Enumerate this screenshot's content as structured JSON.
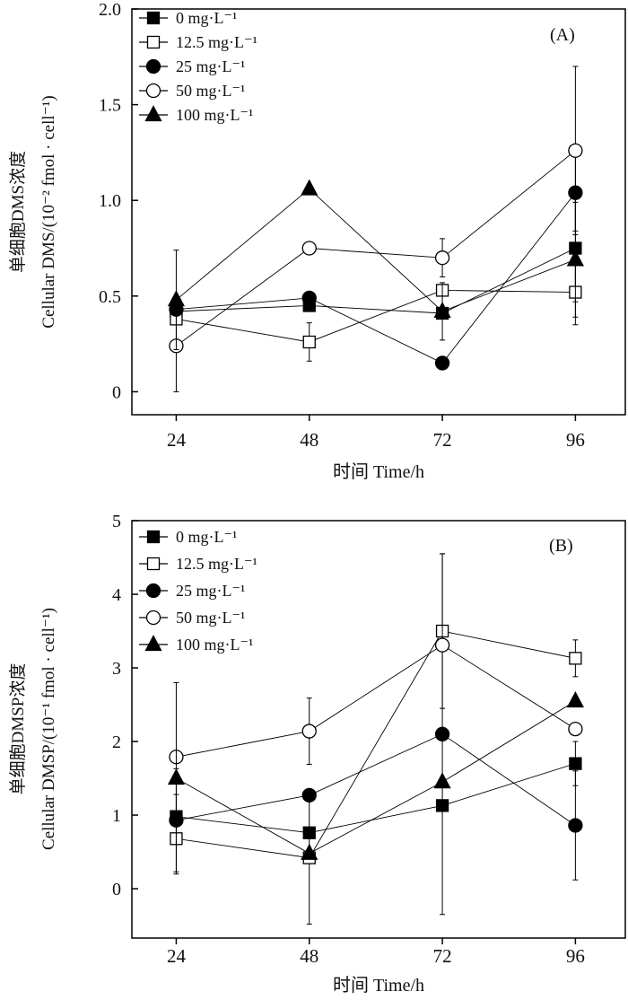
{
  "chart_data": [
    {
      "type": "line",
      "panel_label": "(A)",
      "xlabel": "时间 Time/h",
      "ylabel_cn": "单细胞DMS浓度",
      "ylabel_en": "Cellular DMS/(10⁻² fmol · cell⁻¹)",
      "x": [
        24,
        48,
        72,
        96
      ],
      "x_ticks": [
        "24",
        "48",
        "72",
        "96"
      ],
      "xlim": [
        16,
        105
      ],
      "ylim": [
        -0.12,
        2.0
      ],
      "y_ticks": [
        0,
        0.5,
        1.0,
        1.5,
        2.0
      ],
      "y_tick_labels": [
        "0",
        "0.5",
        "1.0",
        "1.5",
        "2.0"
      ],
      "legend_position": "top-left",
      "series": [
        {
          "name": "0 mg·L⁻¹",
          "marker": "square-filled",
          "values": [
            0.42,
            0.45,
            0.41,
            0.75
          ],
          "errors": [
            0,
            0,
            0,
            0.28
          ]
        },
        {
          "name": "12.5 mg·L⁻¹",
          "marker": "square-open",
          "values": [
            0.38,
            0.26,
            0.53,
            0.52
          ],
          "errors": [
            0,
            0.1,
            0,
            0.17
          ]
        },
        {
          "name": "25 mg·L⁻¹",
          "marker": "circle-filled",
          "values": [
            0.43,
            0.49,
            0.15,
            1.04
          ],
          "errors": [
            0,
            0,
            0,
            0.2
          ]
        },
        {
          "name": "50 mg·L⁻¹",
          "marker": "circle-open",
          "values": [
            0.24,
            0.75,
            0.7,
            1.26
          ],
          "errors": [
            0.24,
            0,
            0.1,
            0.44
          ]
        },
        {
          "name": "100 mg·L⁻¹",
          "marker": "triangle-filled",
          "values": [
            0.48,
            1.06,
            0.42,
            0.69
          ],
          "errors": [
            0.26,
            0,
            0.15,
            0.3
          ]
        }
      ]
    },
    {
      "type": "line",
      "panel_label": "(B)",
      "xlabel": "时间 Time/h",
      "ylabel_cn": "单细胞DMSP浓度",
      "ylabel_en": "Cellular DMSP/(10⁻¹ fmol · cell⁻¹)",
      "x": [
        24,
        48,
        72,
        96
      ],
      "x_ticks": [
        "24",
        "48",
        "72",
        "96"
      ],
      "xlim": [
        16,
        105
      ],
      "ylim": [
        -0.67,
        5
      ],
      "y_ticks": [
        0,
        1,
        2,
        3,
        4,
        5
      ],
      "y_tick_labels": [
        "0",
        "1",
        "2",
        "3",
        "4",
        "5"
      ],
      "legend_position": "top-left",
      "series": [
        {
          "name": "0 mg·L⁻¹",
          "marker": "square-filled",
          "values": [
            0.98,
            0.76,
            1.13,
            1.7
          ],
          "errors": [
            0.3,
            0,
            0,
            0.3
          ]
        },
        {
          "name": "12.5 mg·L⁻¹",
          "marker": "square-open",
          "values": [
            0.68,
            0.42,
            3.5,
            3.13
          ],
          "errors": [
            0,
            0.9,
            1.05,
            0.25
          ]
        },
        {
          "name": "25 mg·L⁻¹",
          "marker": "circle-filled",
          "values": [
            0.93,
            1.27,
            2.1,
            0.86
          ],
          "errors": [
            0.7,
            0,
            2.45,
            0.74
          ]
        },
        {
          "name": "50 mg·L⁻¹",
          "marker": "circle-open",
          "values": [
            1.79,
            2.14,
            3.31,
            2.17
          ],
          "errors": [
            0,
            0.45,
            0,
            0
          ]
        },
        {
          "name": "100 mg·L⁻¹",
          "marker": "triangle-filled",
          "values": [
            1.5,
            0.48,
            1.45,
            2.55
          ],
          "errors": [
            1.3,
            0,
            0,
            0
          ]
        }
      ]
    }
  ]
}
